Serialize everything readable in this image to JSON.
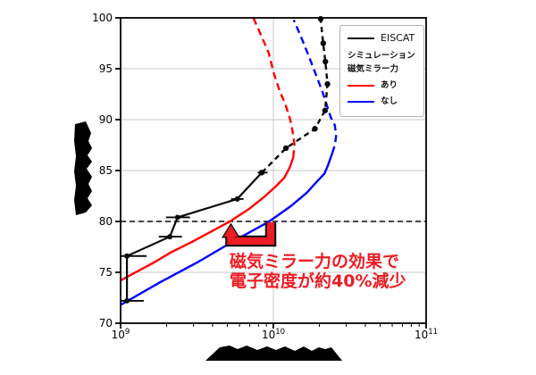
{
  "chart_data": {
    "type": "line",
    "title": "",
    "x_axis": {
      "scale": "log",
      "min_exponent": 9,
      "max_exponent": 11,
      "tick_labels": [
        "10⁹",
        "10¹⁰",
        "10¹¹"
      ],
      "tick_exponents": [
        9,
        10,
        11
      ],
      "label_redacted": true,
      "grid": true
    },
    "y_axis": {
      "min": 70,
      "max": 100,
      "ticks": [
        70,
        75,
        80,
        85,
        90,
        95,
        100
      ],
      "label_redacted": true,
      "grid": true
    },
    "units_note": "ne values in 1e9 m^-3 as read from log axis",
    "series": [
      {
        "name": "EISCAT",
        "color": "#0a0a0a",
        "solid_points": [
          {
            "ne": 1.1,
            "alt": 72.2,
            "lo": 1.0,
            "hi": 1.42
          },
          {
            "ne": 1.1,
            "alt": 76.6,
            "lo": 1.0,
            "hi": 1.48
          },
          {
            "ne": 2.1,
            "alt": 78.5,
            "lo": 1.78,
            "hi": 2.52
          },
          {
            "ne": 2.36,
            "alt": 80.4,
            "lo": 1.98,
            "hi": 2.85
          },
          {
            "ne": 5.8,
            "alt": 82.2,
            "lo": 5.28,
            "hi": 6.38
          },
          {
            "ne": 8.4,
            "alt": 84.8,
            "lo": 7.9,
            "hi": 9.15
          }
        ],
        "dashed_points": [
          [
            8.4,
            84.8
          ],
          [
            12.1,
            87.2
          ],
          [
            18.7,
            89.1
          ],
          [
            21.8,
            90.9
          ],
          [
            22.6,
            93.5
          ],
          [
            21.9,
            95.7
          ],
          [
            21.2,
            97.5
          ],
          [
            20.4,
            99.9
          ]
        ]
      },
      {
        "name": "シミュレーション 磁気ミラー力 あり",
        "color": "#ff0000",
        "solid_points": [
          [
            1.0,
            74.2
          ],
          [
            1.67,
            76.0
          ],
          [
            2.1,
            76.9
          ],
          [
            2.94,
            78.0
          ],
          [
            5.2,
            80.0
          ],
          [
            6.9,
            81.2
          ],
          [
            8.7,
            82.4
          ],
          [
            10.3,
            83.4
          ],
          [
            11.8,
            84.3
          ],
          [
            12.8,
            85.3
          ],
          [
            13.5,
            86.3
          ]
        ],
        "dashed_points": [
          [
            13.5,
            86.3
          ],
          [
            13.75,
            87.6
          ],
          [
            13.3,
            89.0
          ],
          [
            12.9,
            90.0
          ],
          [
            12.0,
            91.5
          ],
          [
            11.0,
            92.8
          ],
          [
            10.1,
            94.5
          ],
          [
            9.3,
            96.6
          ],
          [
            8.3,
            98.3
          ],
          [
            7.4,
            100.0
          ]
        ]
      },
      {
        "name": "シミュレーション 磁気ミラー力 なし",
        "color": "#0000ff",
        "solid_points": [
          [
            1.0,
            71.8
          ],
          [
            1.8,
            74.0
          ],
          [
            3.2,
            76.0
          ],
          [
            5.4,
            78.0
          ],
          [
            9.4,
            80.0
          ],
          [
            13.0,
            81.5
          ],
          [
            16.5,
            82.8
          ],
          [
            19.5,
            84.0
          ],
          [
            21.6,
            84.7
          ],
          [
            22.9,
            85.6
          ],
          [
            24.3,
            86.7
          ]
        ],
        "dashed_points": [
          [
            24.3,
            86.7
          ],
          [
            25.3,
            87.5
          ],
          [
            25.8,
            88.5
          ],
          [
            25.2,
            89.5
          ],
          [
            23.8,
            90.2
          ],
          [
            20.9,
            92.8
          ],
          [
            18.9,
            94.5
          ],
          [
            17.0,
            96.3
          ],
          [
            15.3,
            98.0
          ],
          [
            13.6,
            99.8
          ]
        ]
      }
    ],
    "reference_line": {
      "altitude": 80,
      "style": "dashed",
      "color": "#0a0a0a"
    },
    "annotation": {
      "text_lines": [
        "磁気ミラー力の効果で",
        "電子密度が約40%減少"
      ],
      "color": "#ed1c24",
      "arrow": {
        "from_ne": 10.0,
        "to_ne": 5.2,
        "altitude": 80
      }
    }
  },
  "legend": {
    "eiscat": "EISCAT",
    "sim_line1": "シミュレーション",
    "sim_line2": "磁気ミラー力",
    "with_label": "あり",
    "without_label": "なし"
  }
}
